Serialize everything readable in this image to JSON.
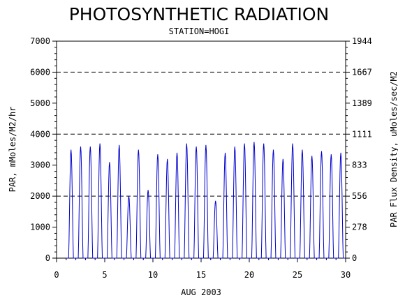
{
  "chart_data": {
    "type": "line",
    "title": "PHOTOSYNTHETIC RADIATION",
    "subtitle": "STATION=HOGI",
    "xlabel": "AUG 2003",
    "ylabel": "PAR, mMoles/M2/hr",
    "y2label": "PAR Flux Density, uMoles/sec/M2",
    "xlim": [
      0,
      30
    ],
    "ylim": [
      0,
      7000
    ],
    "x_ticks": [
      "0",
      "5",
      "10",
      "15",
      "20",
      "25",
      "30"
    ],
    "y_ticks": [
      "0",
      "1000",
      "2000",
      "3000",
      "4000",
      "5000",
      "6000",
      "7000"
    ],
    "y2_ticks": [
      "0",
      "278",
      "556",
      "833",
      "1111",
      "1389",
      "1667",
      "1944"
    ],
    "gridlines_y": [
      2000,
      4000,
      6000
    ],
    "grid": "dashed horizontal at 2000, 4000, 6000",
    "line_color": "#0000cc",
    "series": [
      {
        "daily_peaks": [
          {
            "day": 1,
            "peak": 3500
          },
          {
            "day": 2,
            "peak": 3600
          },
          {
            "day": 3,
            "peak": 3600
          },
          {
            "day": 4,
            "peak": 3700
          },
          {
            "day": 5,
            "peak": 3100
          },
          {
            "day": 6,
            "peak": 3650
          },
          {
            "day": 7,
            "peak": 2000
          },
          {
            "day": 8,
            "peak": 3500
          },
          {
            "day": 9,
            "peak": 2200
          },
          {
            "day": 10,
            "peak": 3350
          },
          {
            "day": 11,
            "peak": 3200
          },
          {
            "day": 12,
            "peak": 3400
          },
          {
            "day": 13,
            "peak": 3700
          },
          {
            "day": 14,
            "peak": 3600
          },
          {
            "day": 15,
            "peak": 3650
          },
          {
            "day": 16,
            "peak": 1850
          },
          {
            "day": 17,
            "peak": 3400
          },
          {
            "day": 18,
            "peak": 3600
          },
          {
            "day": 19,
            "peak": 3700
          },
          {
            "day": 20,
            "peak": 3750
          },
          {
            "day": 21,
            "peak": 3700
          },
          {
            "day": 22,
            "peak": 3500
          },
          {
            "day": 23,
            "peak": 3200
          },
          {
            "day": 24,
            "peak": 3700
          },
          {
            "day": 25,
            "peak": 3500
          },
          {
            "day": 26,
            "peak": 3300
          },
          {
            "day": 27,
            "peak": 3450
          },
          {
            "day": 28,
            "peak": 3350
          },
          {
            "day": 29,
            "peak": 3400
          }
        ]
      }
    ]
  }
}
